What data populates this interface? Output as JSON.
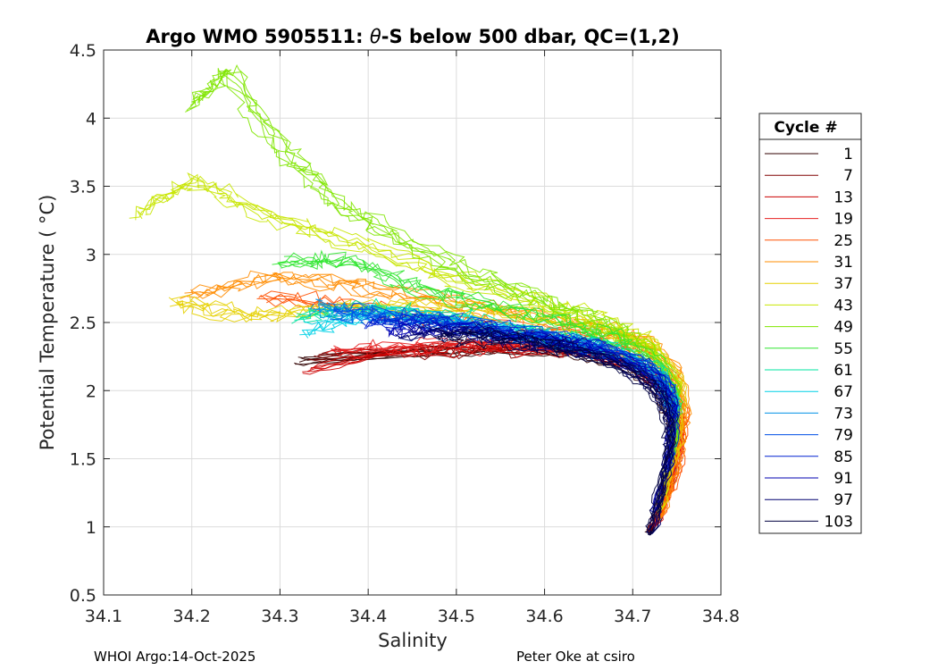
{
  "chart_data": {
    "type": "line",
    "title_prefix": "Argo WMO 5905511: ",
    "title_symbol": "θ",
    "title_suffix": "-S below 500 dbar,  QC=(1,2)",
    "xlabel": "Salinity",
    "ylabel": "Potential Temperature ( °C)",
    "xlim": [
      34.1,
      34.8
    ],
    "ylim": [
      0.5,
      4.5
    ],
    "xticks": [
      "34.1",
      "34.2",
      "34.3",
      "34.4",
      "34.5",
      "34.6",
      "34.7",
      "34.8"
    ],
    "yticks": [
      "0.5",
      "1",
      "1.5",
      "2",
      "2.5",
      "3",
      "3.5",
      "4",
      "4.5"
    ],
    "grid": true,
    "legend": {
      "title": "Cycle #",
      "placement": "right-outside",
      "entries": [
        {
          "label": "1",
          "color": "#300000"
        },
        {
          "label": "7",
          "color": "#800000"
        },
        {
          "label": "13",
          "color": "#cc0000"
        },
        {
          "label": "19",
          "color": "#e62020"
        },
        {
          "label": "25",
          "color": "#ff5000"
        },
        {
          "label": "31",
          "color": "#ff8c00"
        },
        {
          "label": "37",
          "color": "#e6d000"
        },
        {
          "label": "43",
          "color": "#c8e600"
        },
        {
          "label": "49",
          "color": "#80e600"
        },
        {
          "label": "55",
          "color": "#30e630"
        },
        {
          "label": "61",
          "color": "#00e6a0"
        },
        {
          "label": "67",
          "color": "#00d0e6"
        },
        {
          "label": "73",
          "color": "#0090e6"
        },
        {
          "label": "79",
          "color": "#0050e6"
        },
        {
          "label": "85",
          "color": "#0020d0"
        },
        {
          "label": "91",
          "color": "#0000b0"
        },
        {
          "label": "97",
          "color": "#000070"
        },
        {
          "label": "103",
          "color": "#000040"
        }
      ]
    },
    "series": [
      {
        "name": "1",
        "salinity": [
          34.32,
          34.45,
          34.55,
          34.63,
          34.69,
          34.73,
          34.75,
          34.74,
          34.72
        ],
        "theta": [
          2.22,
          2.28,
          2.3,
          2.28,
          2.2,
          2.0,
          1.7,
          1.3,
          0.95
        ]
      },
      {
        "name": "7",
        "salinity": [
          34.34,
          34.46,
          34.56,
          34.64,
          34.7,
          34.74,
          34.75,
          34.74,
          34.72
        ],
        "theta": [
          2.25,
          2.3,
          2.31,
          2.29,
          2.2,
          2.0,
          1.7,
          1.3,
          0.96
        ]
      },
      {
        "name": "13",
        "salinity": [
          34.33,
          34.44,
          34.55,
          34.64,
          34.7,
          34.74,
          34.755,
          34.745,
          34.725
        ],
        "theta": [
          2.15,
          2.3,
          2.32,
          2.3,
          2.2,
          2.0,
          1.7,
          1.35,
          1.0
        ]
      },
      {
        "name": "19",
        "salinity": [
          34.36,
          34.45,
          34.55,
          34.64,
          34.7,
          34.745,
          34.755,
          34.745,
          34.725
        ],
        "theta": [
          2.3,
          2.32,
          2.34,
          2.31,
          2.22,
          2.02,
          1.7,
          1.35,
          1.0
        ]
      },
      {
        "name": "25",
        "salinity": [
          34.28,
          34.4,
          34.52,
          34.62,
          34.7,
          34.745,
          34.76,
          34.75,
          34.73
        ],
        "theta": [
          2.7,
          2.6,
          2.5,
          2.42,
          2.32,
          2.1,
          1.8,
          1.4,
          1.05
        ]
      },
      {
        "name": "31",
        "salinity": [
          34.2,
          34.3,
          34.4,
          34.52,
          34.63,
          34.71,
          34.75,
          34.76,
          34.75,
          34.73
        ],
        "theta": [
          2.7,
          2.85,
          2.75,
          2.62,
          2.5,
          2.38,
          2.15,
          1.85,
          1.45,
          1.05
        ]
      },
      {
        "name": "37",
        "salinity": [
          34.18,
          34.26,
          34.36,
          34.46,
          34.56,
          34.65,
          34.72,
          34.755,
          34.75,
          34.73
        ],
        "theta": [
          2.65,
          2.55,
          2.6,
          2.62,
          2.58,
          2.48,
          2.32,
          2.05,
          1.6,
          1.1
        ]
      },
      {
        "name": "43",
        "salinity": [
          34.14,
          34.2,
          34.28,
          34.38,
          34.48,
          34.58,
          34.66,
          34.72,
          34.75,
          34.745,
          34.73
        ],
        "theta": [
          3.3,
          3.55,
          3.3,
          3.1,
          2.85,
          2.68,
          2.52,
          2.34,
          2.05,
          1.6,
          1.1
        ]
      },
      {
        "name": "49",
        "salinity": [
          34.2,
          34.24,
          34.3,
          34.36,
          34.44,
          34.52,
          34.6,
          34.67,
          34.72,
          34.75,
          34.745
        ],
        "theta": [
          4.1,
          4.35,
          3.8,
          3.4,
          3.1,
          2.85,
          2.65,
          2.48,
          2.3,
          2.0,
          1.6
        ]
      },
      {
        "name": "55",
        "salinity": [
          34.3,
          34.38,
          34.46,
          34.54,
          34.62,
          34.68,
          34.73,
          34.75,
          34.745
        ],
        "theta": [
          2.95,
          2.95,
          2.75,
          2.62,
          2.5,
          2.38,
          2.2,
          1.9,
          1.5
        ]
      },
      {
        "name": "61",
        "salinity": [
          34.32,
          34.4,
          34.48,
          34.56,
          34.62,
          34.68,
          34.73,
          34.75
        ],
        "theta": [
          2.55,
          2.6,
          2.55,
          2.45,
          2.38,
          2.3,
          2.15,
          1.85
        ]
      },
      {
        "name": "67",
        "salinity": [
          34.33,
          34.41,
          34.49,
          34.57,
          34.63,
          34.69,
          34.73,
          34.75
        ],
        "theta": [
          2.45,
          2.58,
          2.52,
          2.42,
          2.34,
          2.25,
          2.1,
          1.85
        ]
      },
      {
        "name": "73",
        "salinity": [
          34.34,
          34.4,
          34.48,
          34.56,
          34.63,
          34.69,
          34.73,
          34.748
        ],
        "theta": [
          2.62,
          2.55,
          2.5,
          2.42,
          2.35,
          2.25,
          2.1,
          1.8
        ]
      },
      {
        "name": "79",
        "salinity": [
          34.36,
          34.44,
          34.52,
          34.6,
          34.66,
          34.71,
          34.74,
          34.748
        ],
        "theta": [
          2.58,
          2.55,
          2.48,
          2.4,
          2.32,
          2.2,
          2.05,
          1.8
        ]
      },
      {
        "name": "85",
        "salinity": [
          34.4,
          34.46,
          34.54,
          34.61,
          34.67,
          34.715,
          34.742,
          34.748,
          34.74
        ],
        "theta": [
          2.5,
          2.52,
          2.45,
          2.38,
          2.3,
          2.18,
          2.0,
          1.75,
          1.4
        ]
      },
      {
        "name": "91",
        "salinity": [
          34.42,
          34.5,
          34.58,
          34.64,
          34.69,
          34.725,
          34.745,
          34.74,
          34.725
        ],
        "theta": [
          2.45,
          2.45,
          2.38,
          2.32,
          2.22,
          2.1,
          1.9,
          1.5,
          1.1
        ]
      },
      {
        "name": "97",
        "salinity": [
          34.44,
          34.52,
          34.6,
          34.66,
          34.7,
          34.73,
          34.745,
          34.74,
          34.722
        ],
        "theta": [
          2.42,
          2.42,
          2.35,
          2.26,
          2.15,
          2.0,
          1.8,
          1.45,
          0.95
        ]
      },
      {
        "name": "103",
        "salinity": [
          34.48,
          34.56,
          34.63,
          34.68,
          34.72,
          34.738,
          34.742,
          34.73,
          34.72
        ],
        "theta": [
          2.4,
          2.38,
          2.3,
          2.2,
          2.05,
          1.85,
          1.6,
          1.25,
          0.94
        ]
      }
    ]
  },
  "footer": {
    "left": "WHOI Argo:14-Oct-2025",
    "right": "Peter Oke at csiro"
  }
}
